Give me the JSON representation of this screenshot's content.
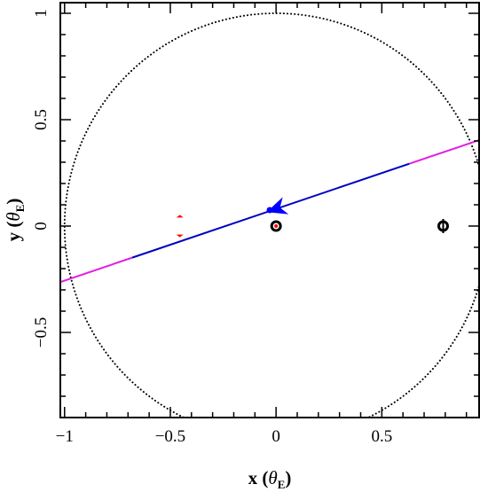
{
  "chart_data": {
    "type": "scatter",
    "xlabel": "x (θE)",
    "ylabel": "y (θE)",
    "xlabel_parts": {
      "main": "x (",
      "sym": "θ",
      "sub": "E",
      "end": ")"
    },
    "ylabel_parts": {
      "main": "y (",
      "sym": "θ",
      "sub": "E",
      "end": ")"
    },
    "xlim": [
      -1.02,
      0.96
    ],
    "ylim": [
      -0.9,
      1.05
    ],
    "x_ticks": [
      -1,
      -0.5,
      0,
      0.5
    ],
    "x_tick_labels": [
      "−1",
      "−0.5",
      "0",
      "0.5"
    ],
    "y_ticks": [
      -0.5,
      0,
      0.5,
      1
    ],
    "y_tick_labels": [
      "−0.5",
      "0",
      "0.5",
      "1"
    ],
    "grid": false,
    "einstein_ring": {
      "center": [
        0,
        0
      ],
      "radius": 1.0,
      "style": "dotted",
      "color": "#000000"
    },
    "source_trajectory": {
      "points": [
        [
          -1.02,
          -0.263
        ],
        [
          0.96,
          0.404
        ]
      ],
      "outer_color": "#e020e0",
      "inner_color": "#0000c0",
      "inner_range_x": [
        -0.68,
        0.63
      ],
      "arrow_at": [
        0.0,
        0.09
      ],
      "source_position": [
        -0.03,
        0.075
      ],
      "arrow_color": "#0000ff"
    },
    "lens_masses": [
      {
        "x": 0.0,
        "y": 0.0,
        "color": "#000000",
        "caustic_color": "#ff0000"
      },
      {
        "x": 0.79,
        "y": 0.0,
        "color": "#000000"
      }
    ],
    "caustics": [
      {
        "x": -0.455,
        "y": 0.04,
        "color": "#ff0000"
      },
      {
        "x": -0.455,
        "y": -0.04,
        "color": "#ff0000"
      }
    ]
  }
}
